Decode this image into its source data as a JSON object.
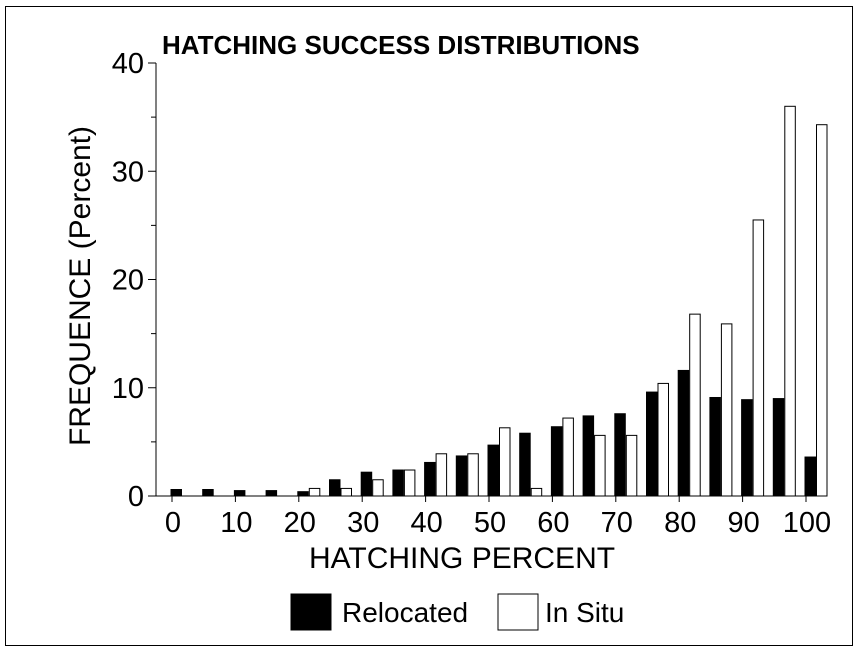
{
  "chart_data": {
    "type": "bar",
    "title": "HATCHING SUCCESS DISTRIBUTIONS",
    "xlabel": "HATCHING PERCENT",
    "ylabel": "FREQUENCE (Percent)",
    "ylim": [
      0,
      40
    ],
    "y_ticks": [
      0,
      10,
      20,
      30,
      40
    ],
    "xlim": [
      0,
      100
    ],
    "x_ticks": [
      0,
      10,
      20,
      30,
      40,
      50,
      60,
      70,
      80,
      90,
      100
    ],
    "categories": [
      0,
      5,
      10,
      15,
      20,
      25,
      30,
      35,
      40,
      45,
      50,
      55,
      60,
      65,
      70,
      75,
      80,
      85,
      90,
      95,
      100
    ],
    "series": [
      {
        "name": "Relocated",
        "color": "#000000",
        "values": [
          0.6,
          0.6,
          0.5,
          0.5,
          0.4,
          1.5,
          2.2,
          2.4,
          3.1,
          3.7,
          4.7,
          5.8,
          6.4,
          7.4,
          7.6,
          9.6,
          11.6,
          9.1,
          8.9,
          9.0,
          3.6
        ]
      },
      {
        "name": "In Situ",
        "color": "#ffffff",
        "values": [
          0,
          0,
          0,
          0,
          0.7,
          0.7,
          1.5,
          2.4,
          3.9,
          3.9,
          6.3,
          0.7,
          7.2,
          5.6,
          5.6,
          10.4,
          16.8,
          15.9,
          25.5,
          36.0,
          34.3
        ]
      }
    ],
    "grid": false,
    "legend_position": "bottom-center"
  }
}
